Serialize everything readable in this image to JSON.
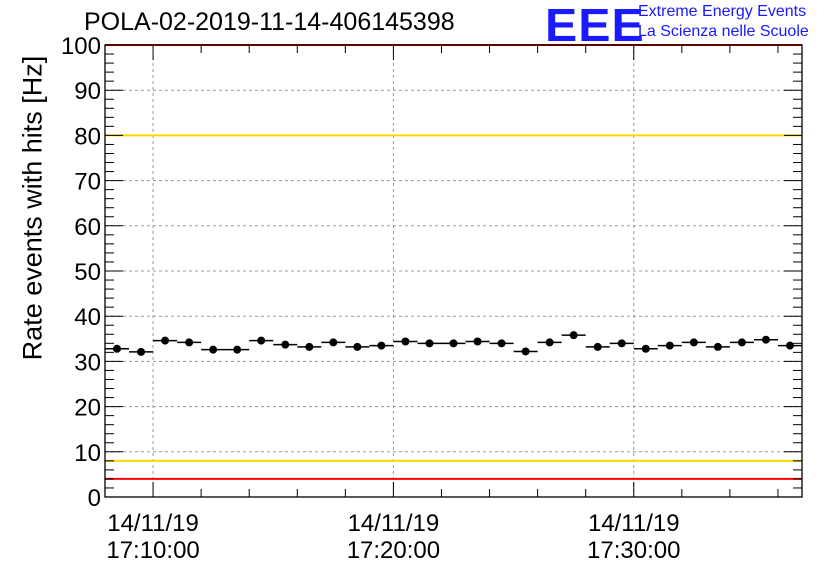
{
  "header": {
    "title": "POLA-02-2019-11-14-406145398",
    "logo_text": "EEE",
    "logo_line1": "Extreme Energy Events",
    "logo_line2": "La Scienza nelle Scuole"
  },
  "colors": {
    "red_line": "#ff0000",
    "yellow_line": "#ffd700",
    "logo": "#1a1aff",
    "markers": "#000000",
    "grid": "#9a9a9a"
  },
  "chart_data": {
    "type": "scatter",
    "title": "POLA-02-2019-11-14-406145398",
    "xlabel": "",
    "ylabel": "Rate events with hits [Hz]",
    "ylim": [
      0,
      100
    ],
    "y_ticks": [
      0,
      10,
      20,
      30,
      40,
      50,
      60,
      70,
      80,
      90,
      100
    ],
    "x_ticks": [
      {
        "minute": 0,
        "date": "14/11/19",
        "time": "17:10:00"
      },
      {
        "minute": 10,
        "date": "14/11/19",
        "time": "17:20:00"
      },
      {
        "minute": 20,
        "date": "14/11/19",
        "time": "17:30:00"
      }
    ],
    "xlim_minutes": [
      -2,
      27
    ],
    "bin_width_minutes": 1,
    "grid": true,
    "x": [
      -1.5,
      -0.5,
      0.5,
      1.5,
      2.5,
      3.5,
      4.5,
      5.5,
      6.5,
      7.5,
      8.5,
      9.5,
      10.5,
      11.5,
      12.5,
      13.5,
      14.5,
      15.5,
      16.5,
      17.5,
      18.5,
      19.5,
      20.5,
      21.5,
      22.5,
      23.5,
      24.5,
      25.5,
      26.5
    ],
    "series": [
      {
        "values": [
          32.8,
          32.1,
          34.6,
          34.2,
          32.6,
          32.6,
          34.6,
          33.7,
          33.2,
          34.2,
          33.2,
          33.5,
          34.4,
          34.0,
          34.0,
          34.4,
          34.0,
          32.2,
          34.2,
          35.8,
          33.2,
          34.0,
          32.8,
          33.5,
          34.2,
          33.2,
          34.2,
          34.8,
          33.5
        ]
      }
    ],
    "reference_lines": [
      {
        "y": 100,
        "color": "#ff0000"
      },
      {
        "y": 80,
        "color": "#ffd700"
      },
      {
        "y": 8,
        "color": "#ffd700"
      },
      {
        "y": 4,
        "color": "#ff0000"
      }
    ]
  }
}
